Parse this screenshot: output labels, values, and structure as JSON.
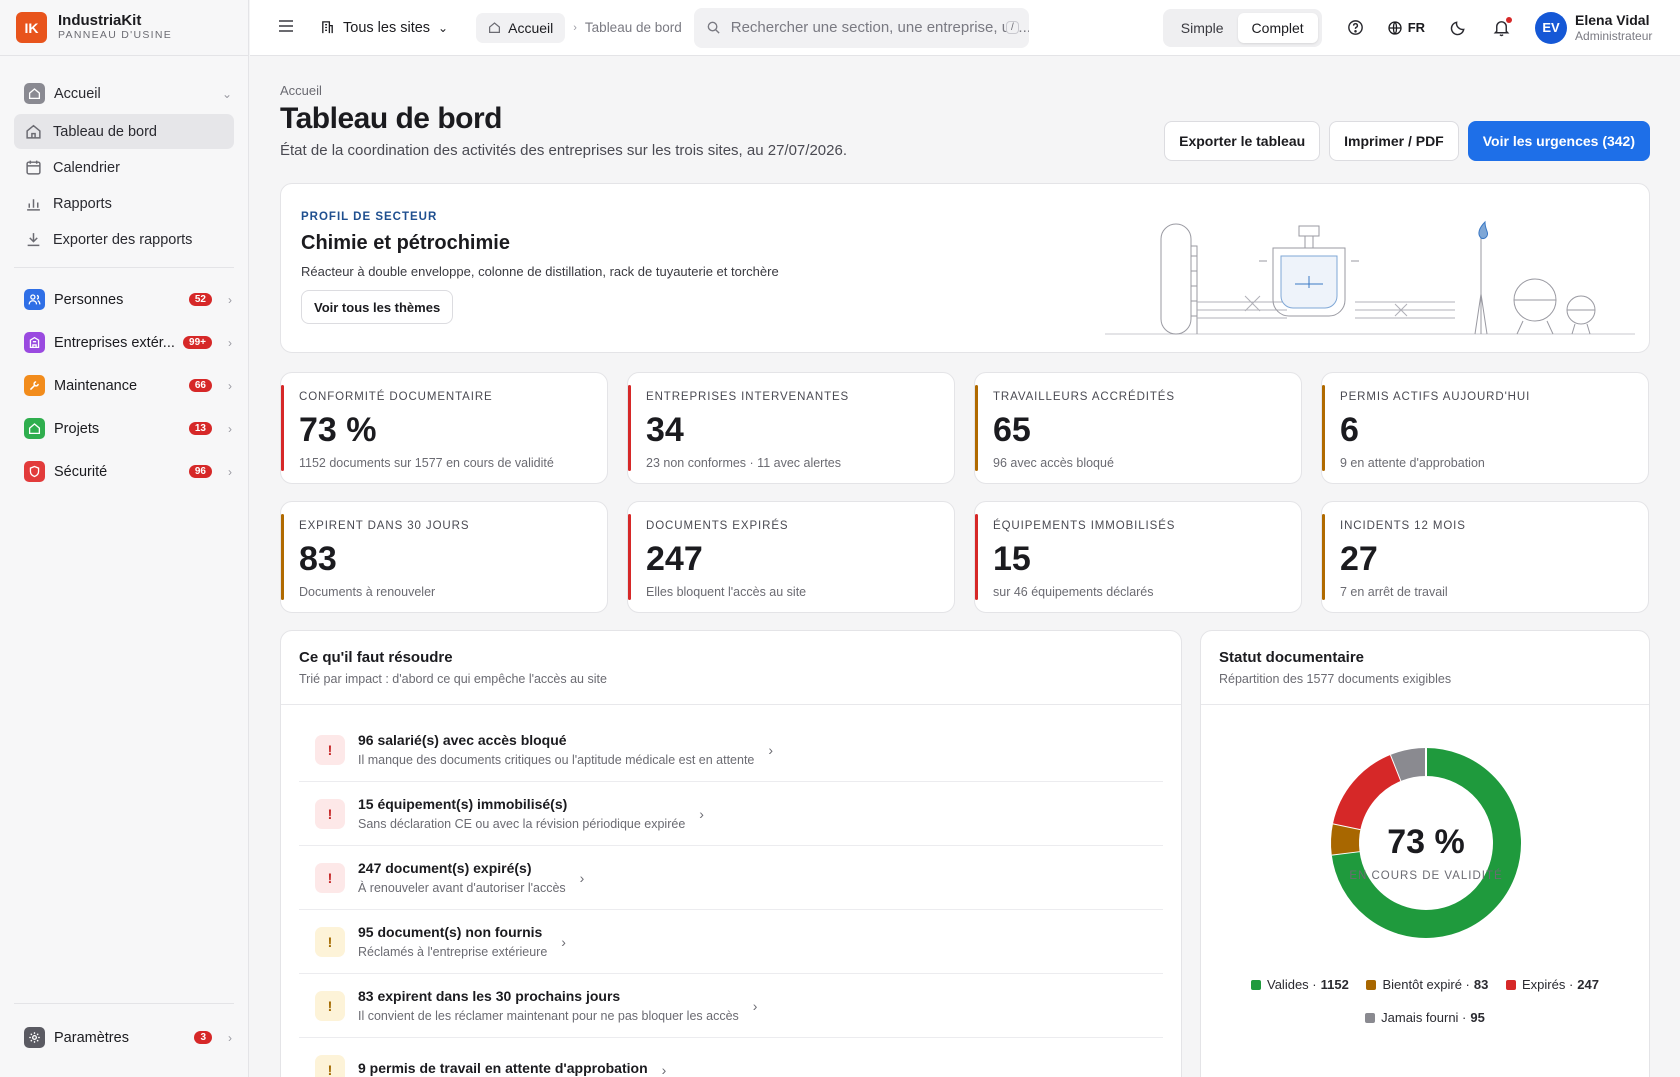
{
  "brand": {
    "logo": "IK",
    "name": "IndustriaKit",
    "subtitle": "PANNEAU D'USINE"
  },
  "sidebar": {
    "home": {
      "label": "Accueil",
      "icon": "home-icon"
    },
    "items": [
      {
        "label": "Tableau de bord",
        "icon": "home-icon",
        "active": true
      },
      {
        "label": "Calendrier",
        "icon": "calendar-icon"
      },
      {
        "label": "Rapports",
        "icon": "bar-chart-icon"
      },
      {
        "label": "Exporter des rapports",
        "icon": "download-icon"
      }
    ],
    "groups": [
      {
        "label": "Personnes",
        "badge": "52",
        "color": "#2f6fe6",
        "icon": "users-icon"
      },
      {
        "label": "Entreprises extér...",
        "badge": "99+",
        "color": "#9a4ae0",
        "icon": "building-icon"
      },
      {
        "label": "Maintenance",
        "badge": "66",
        "color": "#f28c1c",
        "icon": "wrench-icon"
      },
      {
        "label": "Projets",
        "badge": "13",
        "color": "#2fae4e",
        "icon": "folder-icon"
      },
      {
        "label": "Sécurité",
        "badge": "96",
        "color": "#e23b3b",
        "icon": "shield-icon"
      }
    ],
    "settings": {
      "label": "Paramètres",
      "badge": "3",
      "icon": "gear-icon"
    }
  },
  "topbar": {
    "site_selector": "Tous les sites",
    "breadcrumb_home": "Accueil",
    "breadcrumb_current": "Tableau de bord",
    "search_placeholder": "Rechercher une section, une entreprise, un...",
    "search_shortcut": "/",
    "mode_simple": "Simple",
    "mode_complete": "Complet",
    "language": "FR",
    "user": {
      "initials": "EV",
      "name": "Elena Vidal",
      "role": "Administrateur"
    }
  },
  "page": {
    "breadcrumb": "Accueil",
    "title": "Tableau de bord",
    "subtitle": "État de la coordination des activités des entreprises sur les trois sites, au 27/07/2026.",
    "actions": {
      "export": "Exporter le tableau",
      "print": "Imprimer / PDF",
      "urgent": "Voir les urgences (342)"
    }
  },
  "sector": {
    "eyebrow": "PROFIL DE SECTEUR",
    "title": "Chimie et pétrochimie",
    "description": "Réacteur à double enveloppe, colonne de distillation, rack de tuyauterie et torchère",
    "button": "Voir tous les thèmes"
  },
  "kpis": [
    {
      "label": "CONFORMITÉ DOCUMENTAIRE",
      "value": "73 %",
      "sub": "1152 documents sur 1577 en cours de validité",
      "color": "#d62828"
    },
    {
      "label": "ENTREPRISES INTERVENANTES",
      "value": "34",
      "sub": "23 non conformes · 11 avec alertes",
      "color": "#d62828"
    },
    {
      "label": "TRAVAILLEURS ACCRÉDITÉS",
      "value": "65",
      "sub": "96 avec accès bloqué",
      "color": "#b06a00"
    },
    {
      "label": "PERMIS ACTIFS AUJOURD'HUI",
      "value": "6",
      "sub": "9 en attente d'approbation",
      "color": "#b06a00"
    },
    {
      "label": "EXPIRENT DANS 30 JOURS",
      "value": "83",
      "sub": "Documents à renouveler",
      "color": "#b06a00"
    },
    {
      "label": "DOCUMENTS EXPIRÉS",
      "value": "247",
      "sub": "Elles bloquent l'accès au site",
      "color": "#d62828"
    },
    {
      "label": "ÉQUIPEMENTS IMMOBILISÉS",
      "value": "15",
      "sub": "sur 46 équipements déclarés",
      "color": "#d62828"
    },
    {
      "label": "INCIDENTS 12 MOIS",
      "value": "27",
      "sub": "7 en arrêt de travail",
      "color": "#b06a00"
    }
  ],
  "resolve": {
    "title": "Ce qu'il faut résoudre",
    "subtitle": "Trié par impact : d'abord ce qui empêche l'accès au site",
    "items": [
      {
        "title": "96 salarié(s) avec accès bloqué",
        "desc": "Il manque des documents critiques ou l'aptitude médicale est en attente",
        "level": "red"
      },
      {
        "title": "15 équipement(s) immobilisé(s)",
        "desc": "Sans déclaration CE ou avec la révision périodique expirée",
        "level": "red"
      },
      {
        "title": "247 document(s) expiré(s)",
        "desc": "À renouveler avant d'autoriser l'accès",
        "level": "red"
      },
      {
        "title": "95 document(s) non fournis",
        "desc": "Réclamés à l'entreprise extérieure",
        "level": "amber"
      },
      {
        "title": "83 expirent dans les 30 prochains jours",
        "desc": "Il convient de les réclamer maintenant pour ne pas bloquer les accès",
        "level": "amber"
      },
      {
        "title": "9 permis de travail en attente d'approbation",
        "desc": "",
        "level": "amber"
      }
    ]
  },
  "doc_status": {
    "title": "Statut documentaire",
    "subtitle": "Répartition des 1577 documents exigibles",
    "center_value": "73 %",
    "center_label": "EN COURS DE VALIDITÉ",
    "legend": [
      {
        "label": "Valides ·",
        "value": "1152",
        "color": "#1f9a3d"
      },
      {
        "label": "Bientôt expiré ·",
        "value": "83",
        "color": "#a86700"
      },
      {
        "label": "Expirés ·",
        "value": "247",
        "color": "#d62828"
      },
      {
        "label": "Jamais fourni ·",
        "value": "95",
        "color": "#8a8a90"
      }
    ]
  },
  "chart_data": {
    "type": "pie",
    "categories": [
      "Valides",
      "Bientôt expiré",
      "Expirés",
      "Jamais fourni"
    ],
    "values": [
      1152,
      83,
      247,
      95
    ],
    "colors": [
      "#1f9a3d",
      "#a86700",
      "#d62828",
      "#8a8a90"
    ],
    "title": "Statut documentaire"
  }
}
